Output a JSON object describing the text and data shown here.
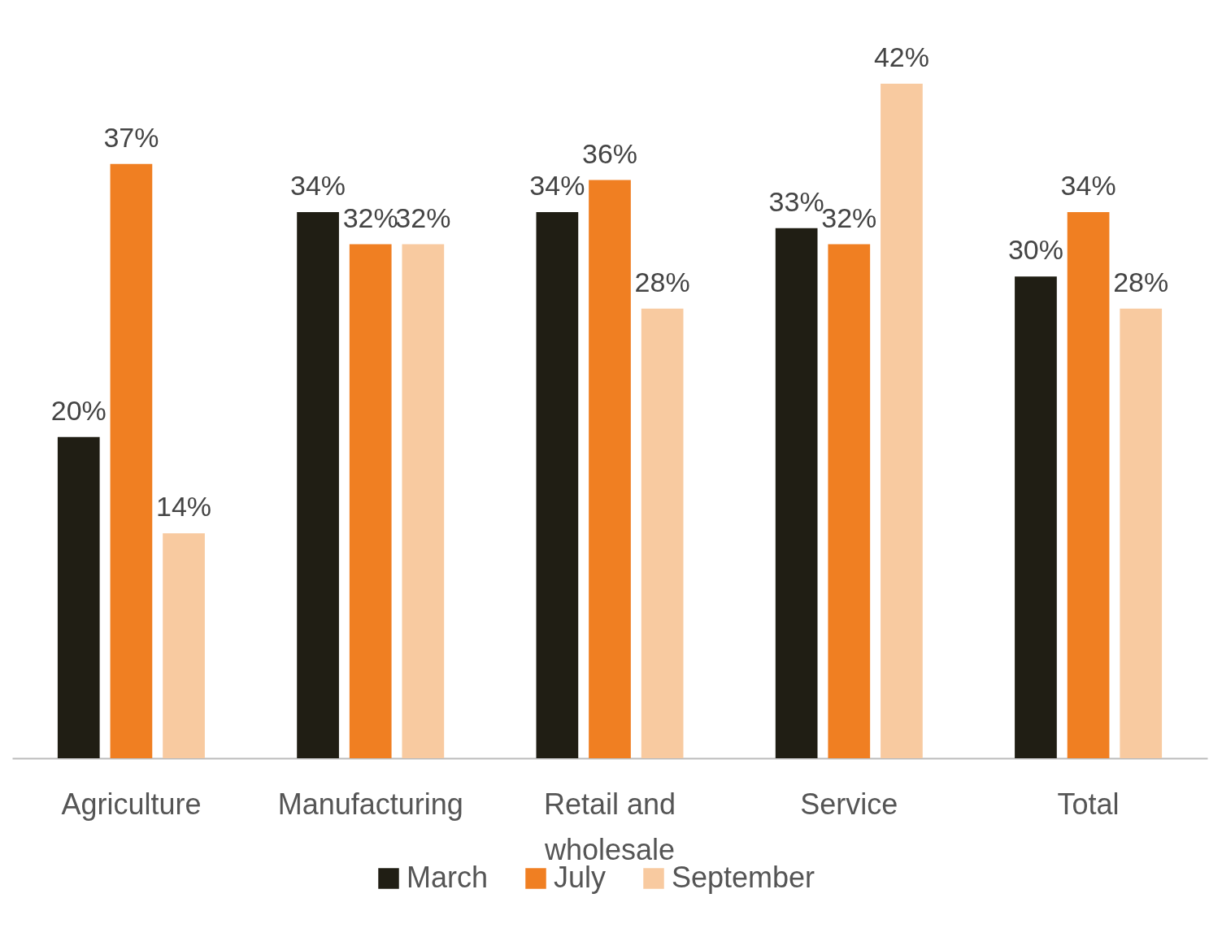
{
  "chart_data": {
    "type": "bar",
    "categories": [
      "Agriculture",
      "Manufacturing",
      "Retail and wholesale",
      "Service",
      "Total"
    ],
    "series": [
      {
        "name": "March",
        "color": "#201e14",
        "values": [
          20,
          34,
          34,
          33,
          30
        ],
        "value_labels": [
          "20%",
          "34%",
          "34%",
          "33%",
          "30%"
        ]
      },
      {
        "name": "July",
        "color": "#f07f22",
        "values": [
          37,
          32,
          36,
          32,
          34
        ],
        "value_labels": [
          "37%",
          "32%",
          "36%",
          "32%",
          "34%"
        ]
      },
      {
        "name": "September",
        "color": "#f8caa0",
        "values": [
          14,
          32,
          28,
          42,
          28
        ],
        "value_labels": [
          "14%",
          "32%",
          "28%",
          "42%",
          "28%"
        ]
      }
    ],
    "legend": "bottom"
  }
}
